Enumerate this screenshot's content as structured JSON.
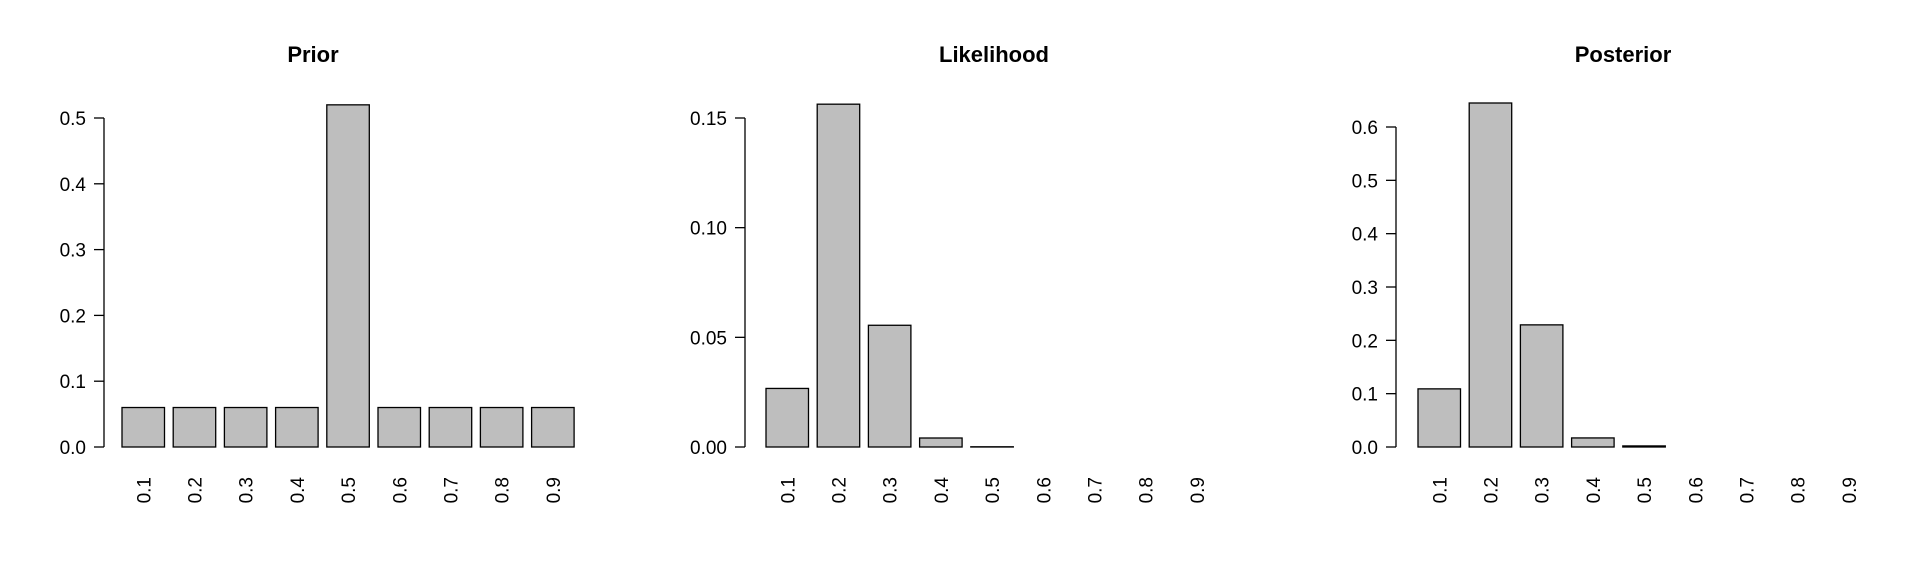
{
  "chart_data": [
    {
      "type": "bar",
      "title": "Prior",
      "categories": [
        "0.1",
        "0.2",
        "0.3",
        "0.4",
        "0.5",
        "0.6",
        "0.7",
        "0.8",
        "0.9"
      ],
      "values": [
        0.06,
        0.06,
        0.06,
        0.06,
        0.52,
        0.06,
        0.06,
        0.06,
        0.06
      ],
      "ylim": [
        0,
        0.5
      ],
      "yticks": [
        0.0,
        0.1,
        0.2,
        0.3,
        0.4,
        0.5
      ],
      "ytick_labels": [
        "0.0",
        "0.1",
        "0.2",
        "0.3",
        "0.4",
        "0.5"
      ],
      "bar_color": "#bebebe",
      "grid": false
    },
    {
      "type": "bar",
      "title": "Likelihood",
      "categories": [
        "0.1",
        "0.2",
        "0.3",
        "0.4",
        "0.5",
        "0.6",
        "0.7",
        "0.8",
        "0.9"
      ],
      "values": [
        0.0267,
        0.1563,
        0.0555,
        0.0041,
        0.0001,
        0.0,
        0.0,
        0.0,
        0.0
      ],
      "ylim": [
        0,
        0.15
      ],
      "yticks": [
        0.0,
        0.05,
        0.1,
        0.15
      ],
      "ytick_labels": [
        "0.00",
        "0.05",
        "0.10",
        "0.15"
      ],
      "bar_color": "#bebebe",
      "grid": false
    },
    {
      "type": "bar",
      "title": "Posterior",
      "categories": [
        "0.1",
        "0.2",
        "0.3",
        "0.4",
        "0.5",
        "0.6",
        "0.7",
        "0.8",
        "0.9"
      ],
      "values": [
        0.109,
        0.645,
        0.229,
        0.017,
        0.002,
        0.0,
        0.0,
        0.0,
        0.0
      ],
      "ylim": [
        0,
        0.6
      ],
      "yticks": [
        0.0,
        0.1,
        0.2,
        0.3,
        0.4,
        0.5,
        0.6
      ],
      "ytick_labels": [
        "0.0",
        "0.1",
        "0.2",
        "0.3",
        "0.4",
        "0.5",
        "0.6"
      ],
      "bar_color": "#bebebe",
      "grid": false
    }
  ]
}
